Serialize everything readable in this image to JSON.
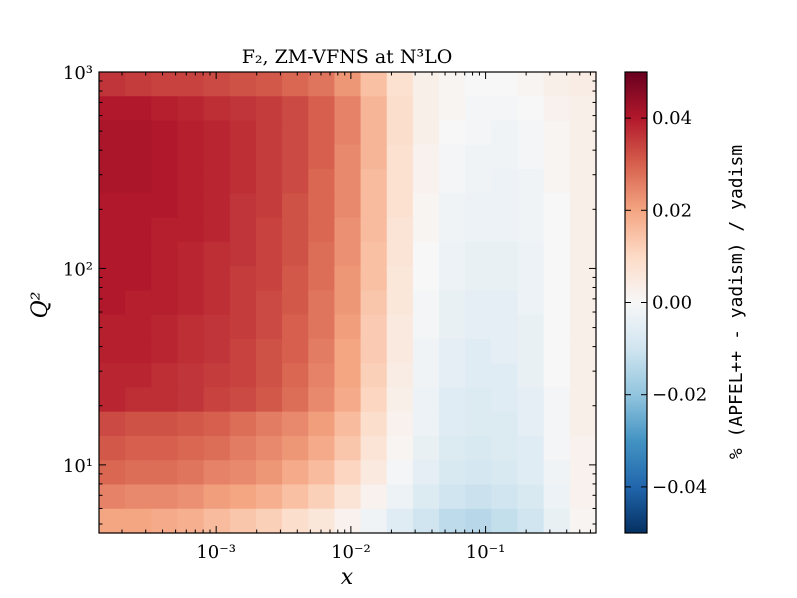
{
  "chart_data": {
    "type": "heatmap",
    "title": "F₂, ZM-VFNS at N³LO",
    "xlabel": "x",
    "ylabel": "Q²",
    "x_scale": "log",
    "y_scale": "log",
    "xlim": [
      0.000135,
      0.66
    ],
    "ylim": [
      4.5,
      1000
    ],
    "x_ticks": [
      {
        "value": 0.001,
        "label": "10⁻³"
      },
      {
        "value": 0.01,
        "label": "10⁻²"
      },
      {
        "value": 0.1,
        "label": "10⁻¹"
      }
    ],
    "y_ticks": [
      {
        "value": 10,
        "label": "10¹"
      },
      {
        "value": 100,
        "label": "10²"
      },
      {
        "value": 1000,
        "label": "10³"
      }
    ],
    "colorbar": {
      "label": "% (APFEL++ - yadism) / yadism",
      "vmin": -0.05,
      "vmax": 0.05,
      "colormap": "RdBu_r",
      "ticks": [
        {
          "value": 0.04,
          "label": "0.04"
        },
        {
          "value": 0.02,
          "label": "0.02"
        },
        {
          "value": 0.0,
          "label": "0.00"
        },
        {
          "value": -0.02,
          "label": "−0.02"
        },
        {
          "value": -0.04,
          "label": "−0.04"
        }
      ]
    },
    "n_columns": 19,
    "rows_top_to_bottom": [
      [
        0.036,
        0.035,
        0.034,
        0.034,
        0.033,
        0.032,
        0.031,
        0.029,
        0.027,
        0.022,
        0.015,
        0.008,
        0.003,
        0.001,
        0.0,
        0.0,
        0.001,
        0.003,
        0.004
      ],
      [
        0.04,
        0.04,
        0.039,
        0.038,
        0.037,
        0.036,
        0.035,
        0.033,
        0.03,
        0.025,
        0.017,
        0.009,
        0.003,
        0.001,
        -0.001,
        -0.001,
        0.0,
        0.002,
        0.003
      ],
      [
        0.041,
        0.041,
        0.04,
        0.039,
        0.038,
        0.037,
        0.035,
        0.033,
        0.03,
        0.025,
        0.017,
        0.009,
        0.003,
        0.0,
        -0.001,
        -0.002,
        -0.001,
        0.001,
        0.003
      ],
      [
        0.041,
        0.041,
        0.04,
        0.039,
        0.038,
        0.037,
        0.035,
        0.033,
        0.03,
        0.024,
        0.017,
        0.008,
        0.002,
        -0.001,
        -0.002,
        -0.002,
        -0.001,
        0.001,
        0.003
      ],
      [
        0.041,
        0.041,
        0.04,
        0.039,
        0.038,
        0.037,
        0.035,
        0.033,
        0.029,
        0.024,
        0.016,
        0.008,
        0.002,
        -0.001,
        -0.002,
        -0.003,
        -0.002,
        0.001,
        0.003
      ],
      [
        0.04,
        0.04,
        0.04,
        0.039,
        0.038,
        0.036,
        0.035,
        0.032,
        0.029,
        0.024,
        0.016,
        0.008,
        0.001,
        -0.002,
        -0.003,
        -0.003,
        -0.002,
        0.0,
        0.003
      ],
      [
        0.04,
        0.04,
        0.039,
        0.039,
        0.038,
        0.036,
        0.034,
        0.032,
        0.029,
        0.023,
        0.016,
        0.007,
        0.001,
        -0.002,
        -0.003,
        -0.003,
        -0.002,
        0.0,
        0.003
      ],
      [
        0.04,
        0.04,
        0.039,
        0.038,
        0.037,
        0.036,
        0.034,
        0.032,
        0.028,
        0.023,
        0.015,
        0.007,
        0.0,
        -0.003,
        -0.004,
        -0.004,
        -0.003,
        0.0,
        0.003
      ],
      [
        0.04,
        0.04,
        0.039,
        0.038,
        0.037,
        0.035,
        0.034,
        0.031,
        0.028,
        0.022,
        0.015,
        0.006,
        0.0,
        -0.003,
        -0.004,
        -0.004,
        -0.003,
        0.0,
        0.003
      ],
      [
        0.04,
        0.039,
        0.039,
        0.038,
        0.037,
        0.035,
        0.033,
        0.031,
        0.027,
        0.022,
        0.014,
        0.006,
        -0.001,
        -0.004,
        -0.005,
        -0.005,
        -0.003,
        0.0,
        0.003
      ],
      [
        0.039,
        0.039,
        0.038,
        0.037,
        0.036,
        0.035,
        0.033,
        0.03,
        0.027,
        0.021,
        0.013,
        0.005,
        -0.001,
        -0.004,
        -0.005,
        -0.005,
        -0.004,
        0.0,
        0.003
      ],
      [
        0.039,
        0.039,
        0.038,
        0.037,
        0.036,
        0.034,
        0.032,
        0.03,
        0.026,
        0.02,
        0.013,
        0.005,
        -0.002,
        -0.005,
        -0.006,
        -0.005,
        -0.004,
        0.0,
        0.003
      ],
      [
        0.038,
        0.038,
        0.037,
        0.036,
        0.035,
        0.034,
        0.032,
        0.029,
        0.025,
        0.02,
        0.012,
        0.004,
        -0.002,
        -0.005,
        -0.006,
        -0.006,
        -0.004,
        0.0,
        0.003
      ],
      [
        0.038,
        0.037,
        0.037,
        0.036,
        0.034,
        0.033,
        0.031,
        0.028,
        0.024,
        0.019,
        0.011,
        0.003,
        -0.003,
        -0.006,
        -0.007,
        -0.006,
        -0.005,
        -0.001,
        0.003
      ],
      [
        0.033,
        0.032,
        0.032,
        0.031,
        0.03,
        0.028,
        0.026,
        0.024,
        0.021,
        0.016,
        0.009,
        0.002,
        -0.003,
        -0.006,
        -0.007,
        -0.007,
        -0.005,
        -0.001,
        0.003
      ],
      [
        0.031,
        0.03,
        0.03,
        0.029,
        0.028,
        0.026,
        0.024,
        0.022,
        0.019,
        0.014,
        0.007,
        0.001,
        -0.004,
        -0.007,
        -0.008,
        -0.007,
        -0.006,
        -0.001,
        0.002
      ],
      [
        0.029,
        0.028,
        0.028,
        0.027,
        0.025,
        0.024,
        0.022,
        0.019,
        0.016,
        0.011,
        0.005,
        -0.001,
        -0.005,
        -0.008,
        -0.009,
        -0.008,
        -0.006,
        -0.002,
        0.002
      ],
      [
        0.025,
        0.024,
        0.024,
        0.023,
        0.021,
        0.02,
        0.018,
        0.015,
        0.012,
        0.007,
        0.002,
        -0.003,
        -0.007,
        -0.01,
        -0.011,
        -0.01,
        -0.008,
        -0.003,
        0.002
      ],
      [
        0.02,
        0.02,
        0.019,
        0.018,
        0.016,
        0.014,
        0.012,
        0.009,
        0.006,
        0.002,
        -0.002,
        -0.006,
        -0.01,
        -0.013,
        -0.014,
        -0.012,
        -0.01,
        -0.004,
        0.001
      ]
    ]
  }
}
